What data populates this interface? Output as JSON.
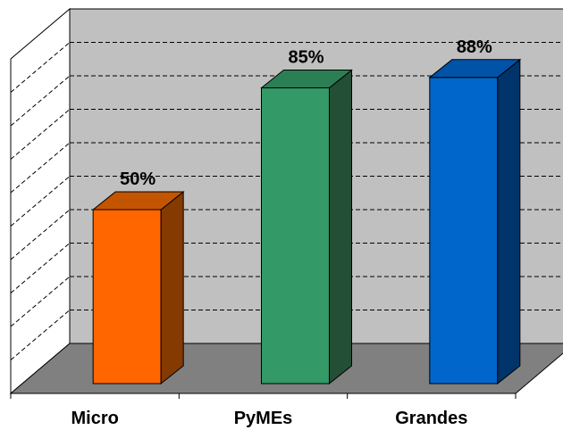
{
  "chart_data": {
    "type": "bar",
    "title": "",
    "xlabel": "",
    "ylabel": "",
    "categories": [
      "Micro",
      "PyMEs",
      "Grandes"
    ],
    "values": [
      50,
      85,
      88
    ],
    "value_labels": [
      "50%",
      "85%",
      "88%"
    ],
    "ylim": [
      0,
      100
    ],
    "grid": true,
    "legend": "none",
    "three_d": true,
    "colors": {
      "bars": [
        "#ff6600",
        "#339966",
        "#0066cc"
      ],
      "sides": [
        "#843a00",
        "#234f36",
        "#00346a"
      ],
      "tops": [
        "#c45500",
        "#2c7e55",
        "#0053a6"
      ],
      "back_wall": "#c0c0c0",
      "side_wall": "#ffffff",
      "floor": "#808080"
    }
  }
}
